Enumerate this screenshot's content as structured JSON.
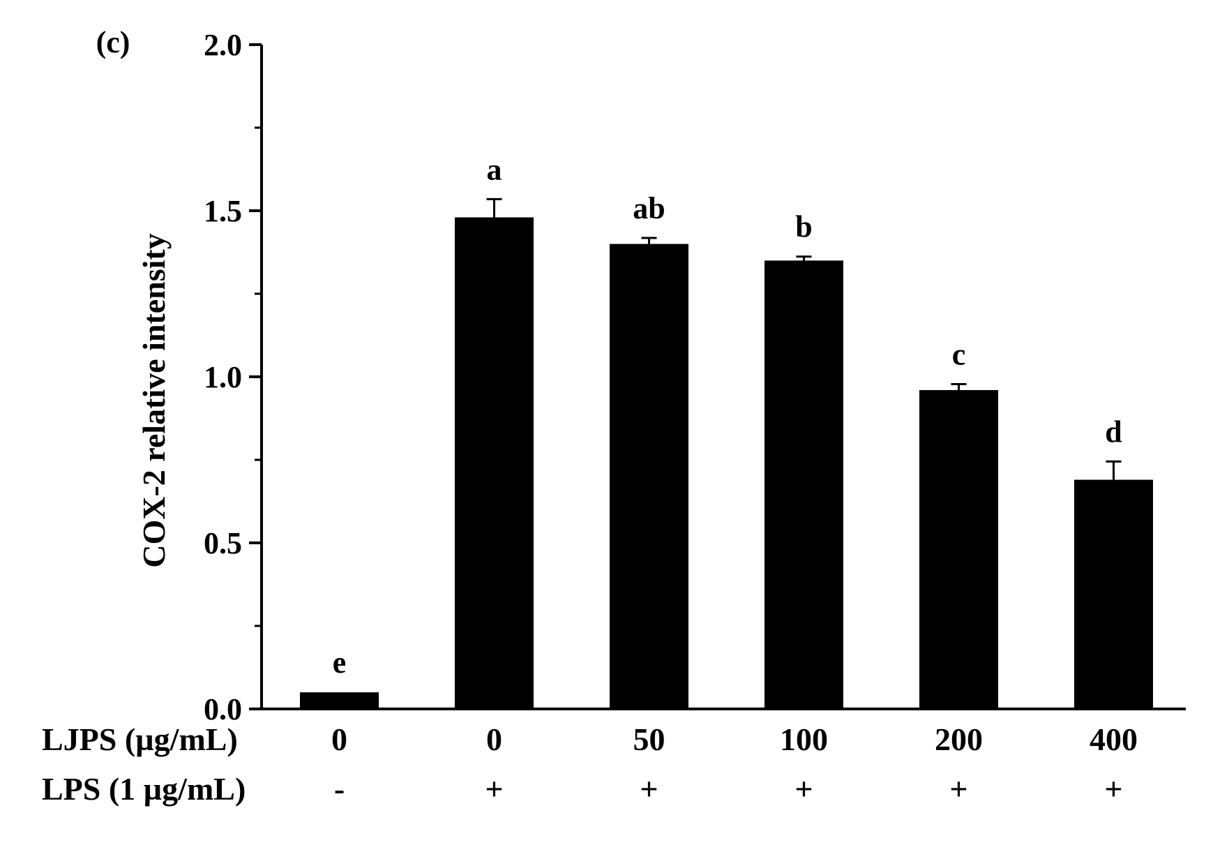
{
  "panel_label": "(c)",
  "row_labels": {
    "ljps": "LJPS (µg/mL)",
    "lps": "LPS (1 µg/mL)"
  },
  "chart_data": {
    "type": "bar",
    "title": "",
    "xlabel": "",
    "ylabel": "COX-2 relative intensity",
    "ylim": [
      0,
      2.0
    ],
    "y_ticks": [
      "0.0",
      "0.5",
      "1.0",
      "1.5",
      "2.0"
    ],
    "y_tick_values": [
      0,
      0.5,
      1.0,
      1.5,
      2.0
    ],
    "y_minor_step": 0.25,
    "grid": false,
    "legend": "none",
    "bar_color": "#000000",
    "categories": [
      {
        "ljps": "0",
        "lps": "-"
      },
      {
        "ljps": "0",
        "lps": "+"
      },
      {
        "ljps": "50",
        "lps": "+"
      },
      {
        "ljps": "100",
        "lps": "+"
      },
      {
        "ljps": "200",
        "lps": "+"
      },
      {
        "ljps": "400",
        "lps": "+"
      }
    ],
    "values": [
      0.05,
      1.48,
      1.4,
      1.35,
      0.96,
      0.69
    ],
    "errors": [
      0.0,
      0.055,
      0.018,
      0.012,
      0.018,
      0.055
    ],
    "significance_letters": [
      "e",
      "a",
      "ab",
      "b",
      "c",
      "d"
    ]
  }
}
